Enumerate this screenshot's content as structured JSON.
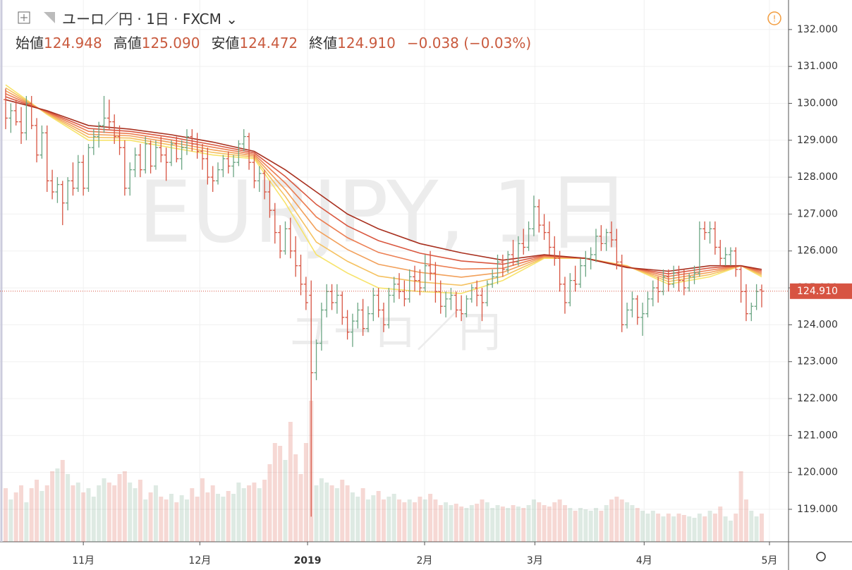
{
  "header": {
    "symbol": "ユーロ／円",
    "interval": "1日",
    "source": "FXCM",
    "ohlc": [
      {
        "label": "始値",
        "value": "124.948"
      },
      {
        "label": "高値",
        "value": "125.090"
      },
      {
        "label": "安値",
        "value": "124.472"
      },
      {
        "label": "終値",
        "value": "124.910"
      }
    ],
    "change": "−0.038 (−0.03%)"
  },
  "chart_data": {
    "type": "ohlc",
    "watermark": "EURJPY, 1日",
    "watermark_sub": "ユーロ／円",
    "up_color": "#6ba583",
    "down_color": "#d75442",
    "grid": true,
    "xlim": [
      -1.09,
      151.18
    ],
    "ylim": [
      118.12,
      132.8
    ],
    "xticks": [
      {
        "value": 15,
        "label": "11月"
      },
      {
        "value": 37.5,
        "label": "12月"
      },
      {
        "value": 58.3,
        "label": "2019"
      },
      {
        "value": 80.9,
        "label": "2月"
      },
      {
        "value": 102.2,
        "label": "3月"
      },
      {
        "value": 123.3,
        "label": "4月"
      },
      {
        "value": 147.5,
        "label": "5月"
      }
    ],
    "yticks": [
      {
        "value": 119,
        "label": "119.000"
      },
      {
        "value": 120,
        "label": "120.000"
      },
      {
        "value": 121,
        "label": "121.000"
      },
      {
        "value": 122,
        "label": "122.000"
      },
      {
        "value": 123,
        "label": "123.000"
      },
      {
        "value": 124,
        "label": "124.000"
      },
      {
        "value": 125,
        "label": "125.000"
      },
      {
        "value": 126,
        "label": "126.000"
      },
      {
        "value": 127,
        "label": "127.000"
      },
      {
        "value": 128,
        "label": "128.000"
      },
      {
        "value": 129,
        "label": "129.000"
      },
      {
        "value": 130,
        "label": "130.000"
      },
      {
        "value": 131,
        "label": "131.000"
      },
      {
        "value": 132,
        "label": "132.000"
      }
    ],
    "current_price": {
      "value": 124.91,
      "label": "124.910"
    },
    "volume_lim": [
      0,
      100
    ],
    "ohlc": [
      [
        130.1,
        130.4,
        129.3,
        129.6
      ],
      [
        129.6,
        130.0,
        129.2,
        129.8
      ],
      [
        129.8,
        130.1,
        129.4,
        129.5
      ],
      [
        129.5,
        129.9,
        128.9,
        129.2
      ],
      [
        129.2,
        130.2,
        129.0,
        130.0
      ],
      [
        130.0,
        130.2,
        129.3,
        129.4
      ],
      [
        129.4,
        129.6,
        128.4,
        128.6
      ],
      [
        128.6,
        129.4,
        128.5,
        129.2
      ],
      [
        129.2,
        129.4,
        127.6,
        127.9
      ],
      [
        127.9,
        128.2,
        127.4,
        127.6
      ],
      [
        127.6,
        128.0,
        127.3,
        127.8
      ],
      [
        127.8,
        127.9,
        126.7,
        127.3
      ],
      [
        127.3,
        128.0,
        127.1,
        127.9
      ],
      [
        127.9,
        128.4,
        127.5,
        127.7
      ],
      [
        127.7,
        128.6,
        127.6,
        128.4
      ],
      [
        128.4,
        128.6,
        127.5,
        127.7
      ],
      [
        127.7,
        128.9,
        127.6,
        128.8
      ],
      [
        128.8,
        129.3,
        128.6,
        129.1
      ],
      [
        129.1,
        129.5,
        128.8,
        129.4
      ],
      [
        129.4,
        130.2,
        129.2,
        129.6
      ],
      [
        129.6,
        130.1,
        129.3,
        129.5
      ],
      [
        129.5,
        129.7,
        128.9,
        129.1
      ],
      [
        129.1,
        129.4,
        128.6,
        128.8
      ],
      [
        128.8,
        129.0,
        127.5,
        127.7
      ],
      [
        127.7,
        128.4,
        127.5,
        128.2
      ],
      [
        128.2,
        128.8,
        128.0,
        128.6
      ],
      [
        128.6,
        128.9,
        128.0,
        128.2
      ],
      [
        128.2,
        129.1,
        128.1,
        128.9
      ],
      [
        128.9,
        129.0,
        128.1,
        128.3
      ],
      [
        128.3,
        129.0,
        128.2,
        128.8
      ],
      [
        128.8,
        129.1,
        128.4,
        128.6
      ],
      [
        128.6,
        128.8,
        127.9,
        128.4
      ],
      [
        128.4,
        129.0,
        128.3,
        128.9
      ],
      [
        128.9,
        129.1,
        128.4,
        128.5
      ],
      [
        128.5,
        129.0,
        128.2,
        128.8
      ],
      [
        128.8,
        129.3,
        128.6,
        129.1
      ],
      [
        129.1,
        129.3,
        128.7,
        128.9
      ],
      [
        128.9,
        129.2,
        128.5,
        128.7
      ],
      [
        128.7,
        128.9,
        128.2,
        128.5
      ],
      [
        128.5,
        128.8,
        127.8,
        128.0
      ],
      [
        128.0,
        128.3,
        127.6,
        127.9
      ],
      [
        127.9,
        128.4,
        127.8,
        128.2
      ],
      [
        128.2,
        128.6,
        128.0,
        128.5
      ],
      [
        128.5,
        128.7,
        128.1,
        128.3
      ],
      [
        128.3,
        128.6,
        128.0,
        128.4
      ],
      [
        128.4,
        129.0,
        128.3,
        128.9
      ],
      [
        128.9,
        129.3,
        128.7,
        129.1
      ],
      [
        129.1,
        129.2,
        128.2,
        128.4
      ],
      [
        128.4,
        128.6,
        127.7,
        127.9
      ],
      [
        127.9,
        128.3,
        127.6,
        128.1
      ],
      [
        128.1,
        128.2,
        127.4,
        127.6
      ],
      [
        127.6,
        127.9,
        126.9,
        127.1
      ],
      [
        127.1,
        127.3,
        126.2,
        126.5
      ],
      [
        126.5,
        126.7,
        125.8,
        126.0
      ],
      [
        126.0,
        126.8,
        125.9,
        126.6
      ],
      [
        126.6,
        126.9,
        125.8,
        126.0
      ],
      [
        126.0,
        126.4,
        125.3,
        125.6
      ],
      [
        125.6,
        125.9,
        124.8,
        125.1
      ],
      [
        125.1,
        125.3,
        124.4,
        124.6
      ],
      [
        124.8,
        125.2,
        118.8,
        122.7
      ],
      [
        122.7,
        123.6,
        122.5,
        123.5
      ],
      [
        123.5,
        124.6,
        123.3,
        124.4
      ],
      [
        124.4,
        125.1,
        124.2,
        124.9
      ],
      [
        124.9,
        125.1,
        124.4,
        124.6
      ],
      [
        124.6,
        125.1,
        124.3,
        124.8
      ],
      [
        124.8,
        124.9,
        124.0,
        124.2
      ],
      [
        124.2,
        124.4,
        123.6,
        123.8
      ],
      [
        123.8,
        124.3,
        123.4,
        124.1
      ],
      [
        124.1,
        124.6,
        123.9,
        124.4
      ],
      [
        124.4,
        124.7,
        123.7,
        123.9
      ],
      [
        123.9,
        124.5,
        123.8,
        124.3
      ],
      [
        124.3,
        125.0,
        124.1,
        124.8
      ],
      [
        124.8,
        125.0,
        124.2,
        124.4
      ],
      [
        124.4,
        124.6,
        123.8,
        124.0
      ],
      [
        124.0,
        125.0,
        123.9,
        124.8
      ],
      [
        124.8,
        125.3,
        124.6,
        125.1
      ],
      [
        125.1,
        125.4,
        124.7,
        124.9
      ],
      [
        124.9,
        125.2,
        124.5,
        124.7
      ],
      [
        124.7,
        125.5,
        124.6,
        125.3
      ],
      [
        125.3,
        125.6,
        124.9,
        125.2
      ],
      [
        125.2,
        125.5,
        124.8,
        125.0
      ],
      [
        125.0,
        125.9,
        124.9,
        125.6
      ],
      [
        125.6,
        126.0,
        125.2,
        125.4
      ],
      [
        125.4,
        125.7,
        124.6,
        124.9
      ],
      [
        124.9,
        125.2,
        124.3,
        124.5
      ],
      [
        124.5,
        124.9,
        124.2,
        124.7
      ],
      [
        124.7,
        125.0,
        124.4,
        124.8
      ],
      [
        124.8,
        124.9,
        124.2,
        124.4
      ],
      [
        124.4,
        124.8,
        124.1,
        124.3
      ],
      [
        124.3,
        124.8,
        124.2,
        124.7
      ],
      [
        124.7,
        125.1,
        124.6,
        125.0
      ],
      [
        125.0,
        125.2,
        124.5,
        124.8
      ],
      [
        124.8,
        125.0,
        124.1,
        124.6
      ],
      [
        124.6,
        125.2,
        124.5,
        125.1
      ],
      [
        125.1,
        125.5,
        125.0,
        125.3
      ],
      [
        125.3,
        125.9,
        125.1,
        125.7
      ],
      [
        125.7,
        125.9,
        125.3,
        125.5
      ],
      [
        125.5,
        126.0,
        125.4,
        125.9
      ],
      [
        125.9,
        126.3,
        125.6,
        125.7
      ],
      [
        125.7,
        126.4,
        125.6,
        126.2
      ],
      [
        126.2,
        126.6,
        125.9,
        126.1
      ],
      [
        126.1,
        126.8,
        126.0,
        126.6
      ],
      [
        126.6,
        127.5,
        126.4,
        127.2
      ],
      [
        127.2,
        127.4,
        126.5,
        126.7
      ],
      [
        126.7,
        127.0,
        126.3,
        126.5
      ],
      [
        126.5,
        126.8,
        125.9,
        126.1
      ],
      [
        126.1,
        126.4,
        125.6,
        125.8
      ],
      [
        125.8,
        126.0,
        124.9,
        125.1
      ],
      [
        125.1,
        125.3,
        124.3,
        124.6
      ],
      [
        124.6,
        125.4,
        124.5,
        125.2
      ],
      [
        125.2,
        125.6,
        124.9,
        125.1
      ],
      [
        125.1,
        125.8,
        125.0,
        125.6
      ],
      [
        125.6,
        126.0,
        125.3,
        125.8
      ],
      [
        125.8,
        126.1,
        125.5,
        125.9
      ],
      [
        125.9,
        126.6,
        125.7,
        126.4
      ],
      [
        126.4,
        126.7,
        126.0,
        126.2
      ],
      [
        126.2,
        126.6,
        126.0,
        126.5
      ],
      [
        126.5,
        126.8,
        126.1,
        126.3
      ],
      [
        126.3,
        126.6,
        125.5,
        125.7
      ],
      [
        125.7,
        125.9,
        123.8,
        124.0
      ],
      [
        124.0,
        124.6,
        123.9,
        124.4
      ],
      [
        124.4,
        124.9,
        124.2,
        124.7
      ],
      [
        124.7,
        124.8,
        124.0,
        124.2
      ],
      [
        124.2,
        124.6,
        123.7,
        124.3
      ],
      [
        124.3,
        124.9,
        124.2,
        124.7
      ],
      [
        124.7,
        125.2,
        124.5,
        125.0
      ],
      [
        125.0,
        125.3,
        124.6,
        124.9
      ],
      [
        124.9,
        125.5,
        124.8,
        125.3
      ],
      [
        125.3,
        125.5,
        124.9,
        125.1
      ],
      [
        125.1,
        125.6,
        125.0,
        125.4
      ],
      [
        125.4,
        125.6,
        124.9,
        125.2
      ],
      [
        125.2,
        125.5,
        124.8,
        125.0
      ],
      [
        125.0,
        125.4,
        124.9,
        125.3
      ],
      [
        125.3,
        125.6,
        125.1,
        125.4
      ],
      [
        125.4,
        126.8,
        125.3,
        126.6
      ],
      [
        126.6,
        126.8,
        126.3,
        126.5
      ],
      [
        126.5,
        126.8,
        126.2,
        126.6
      ],
      [
        126.6,
        126.8,
        125.9,
        126.1
      ],
      [
        126.1,
        126.3,
        125.6,
        125.8
      ],
      [
        125.8,
        126.1,
        125.6,
        125.9
      ],
      [
        125.9,
        126.1,
        125.6,
        126.0
      ],
      [
        126.0,
        126.1,
        125.3,
        125.5
      ],
      [
        125.5,
        125.6,
        124.6,
        124.9
      ],
      [
        124.9,
        125.1,
        124.1,
        124.3
      ],
      [
        124.3,
        124.6,
        124.1,
        124.5
      ],
      [
        124.5,
        125.1,
        124.4,
        124.9
      ],
      [
        124.948,
        125.09,
        124.472,
        124.91
      ]
    ],
    "volume": [
      38,
      30,
      35,
      40,
      28,
      38,
      44,
      36,
      40,
      50,
      52,
      58,
      48,
      40,
      42,
      35,
      38,
      32,
      40,
      45,
      42,
      40,
      48,
      50,
      42,
      38,
      44,
      30,
      35,
      40,
      32,
      30,
      34,
      28,
      33,
      30,
      38,
      32,
      45,
      35,
      40,
      34,
      32,
      36,
      34,
      42,
      38,
      40,
      42,
      38,
      44,
      55,
      70,
      68,
      58,
      85,
      62,
      48,
      70,
      100,
      40,
      45,
      42,
      40,
      38,
      44,
      40,
      35,
      32,
      38,
      30,
      33,
      36,
      30,
      32,
      34,
      30,
      28,
      30,
      28,
      32,
      30,
      34,
      30,
      26,
      28,
      26,
      27,
      25,
      24,
      26,
      27,
      30,
      28,
      24,
      26,
      25,
      24,
      26,
      25,
      24,
      26,
      30,
      28,
      26,
      25,
      28,
      30,
      26,
      24,
      22,
      24,
      23,
      22,
      24,
      22,
      26,
      30,
      32,
      30,
      28,
      26,
      24,
      22,
      20,
      22,
      20,
      18,
      20,
      18,
      20,
      19,
      18,
      17,
      20,
      18,
      22,
      20,
      25,
      18,
      15,
      20,
      50,
      30,
      22,
      18,
      20
    ],
    "ma_x": [
      0,
      8,
      16,
      24,
      32,
      40,
      48,
      54,
      60,
      66,
      72,
      80,
      88,
      96,
      104,
      112,
      120,
      128,
      136,
      142,
      146
    ],
    "ma_series": [
      {
        "color": "#f7e36b",
        "values": [
          130.5,
          129.7,
          129.0,
          129.0,
          128.8,
          128.6,
          128.5,
          127.3,
          125.9,
          125.4,
          125.0,
          124.9,
          124.85,
          125.2,
          125.8,
          125.8,
          125.6,
          125.1,
          125.3,
          125.6,
          125.3
        ]
      },
      {
        "color": "#f5c160",
        "values": [
          130.42,
          129.72,
          129.08,
          129.06,
          128.87,
          128.67,
          128.54,
          127.48,
          126.24,
          125.72,
          125.32,
          125.16,
          125.07,
          125.31,
          125.82,
          125.8,
          125.59,
          125.17,
          125.36,
          125.6,
          125.34
        ]
      },
      {
        "color": "#f2a05a",
        "values": [
          130.34,
          129.74,
          129.16,
          129.12,
          128.94,
          128.74,
          128.58,
          127.66,
          126.58,
          126.04,
          125.64,
          125.42,
          125.29,
          125.42,
          125.84,
          125.8,
          125.58,
          125.24,
          125.42,
          125.6,
          125.38
        ]
      },
      {
        "color": "#ec7e52",
        "values": [
          130.26,
          129.76,
          129.24,
          129.18,
          129.01,
          128.81,
          128.62,
          127.84,
          126.92,
          126.36,
          125.96,
          125.68,
          125.51,
          125.53,
          125.86,
          125.8,
          125.57,
          125.31,
          125.48,
          125.6,
          125.42
        ]
      },
      {
        "color": "#d9573f",
        "values": [
          130.18,
          129.78,
          129.32,
          129.24,
          129.08,
          128.88,
          128.66,
          128.02,
          127.26,
          126.68,
          126.28,
          125.94,
          125.73,
          125.64,
          125.88,
          125.8,
          125.56,
          125.38,
          125.54,
          125.6,
          125.46
        ]
      },
      {
        "color": "#a8301f",
        "values": [
          130.1,
          129.8,
          129.4,
          129.3,
          129.15,
          128.95,
          128.7,
          128.2,
          127.6,
          127.0,
          126.6,
          126.2,
          125.95,
          125.75,
          125.9,
          125.8,
          125.55,
          125.45,
          125.6,
          125.6,
          125.5
        ]
      }
    ]
  }
}
